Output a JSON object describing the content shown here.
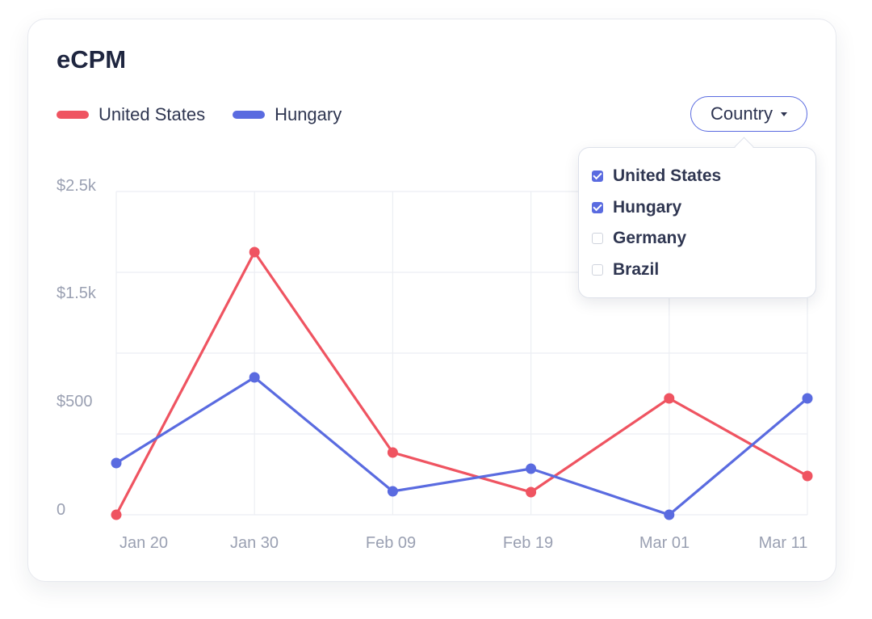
{
  "card": {
    "title": "eCPM"
  },
  "legend": [
    {
      "label": "United States",
      "color": "#ef5461"
    },
    {
      "label": "Hungary",
      "color": "#5a6be0"
    }
  ],
  "filter": {
    "button_label": "Country",
    "options": [
      {
        "label": "United States",
        "checked": true
      },
      {
        "label": "Hungary",
        "checked": true
      },
      {
        "label": "Germany",
        "checked": false
      },
      {
        "label": "Brazil",
        "checked": false
      }
    ]
  },
  "chart_data": {
    "type": "line",
    "title": "eCPM",
    "xlabel": "",
    "ylabel": "",
    "x": [
      "Jan 20",
      "Jan 30",
      "Feb 09",
      "Feb 19",
      "Mar 01",
      "Mar 11"
    ],
    "y_tick_labels": [
      "$2.5k",
      "$1.5k",
      "$500",
      "0"
    ],
    "ylim": [
      0,
      2000
    ],
    "grid": true,
    "legend_position": "top-left",
    "series": [
      {
        "name": "United States",
        "color": "#ef5461",
        "values": [
          0,
          1625,
          385,
          140,
          720,
          240
        ]
      },
      {
        "name": "Hungary",
        "color": "#5a6be0",
        "values": [
          320,
          850,
          145,
          285,
          0,
          720
        ]
      }
    ]
  }
}
